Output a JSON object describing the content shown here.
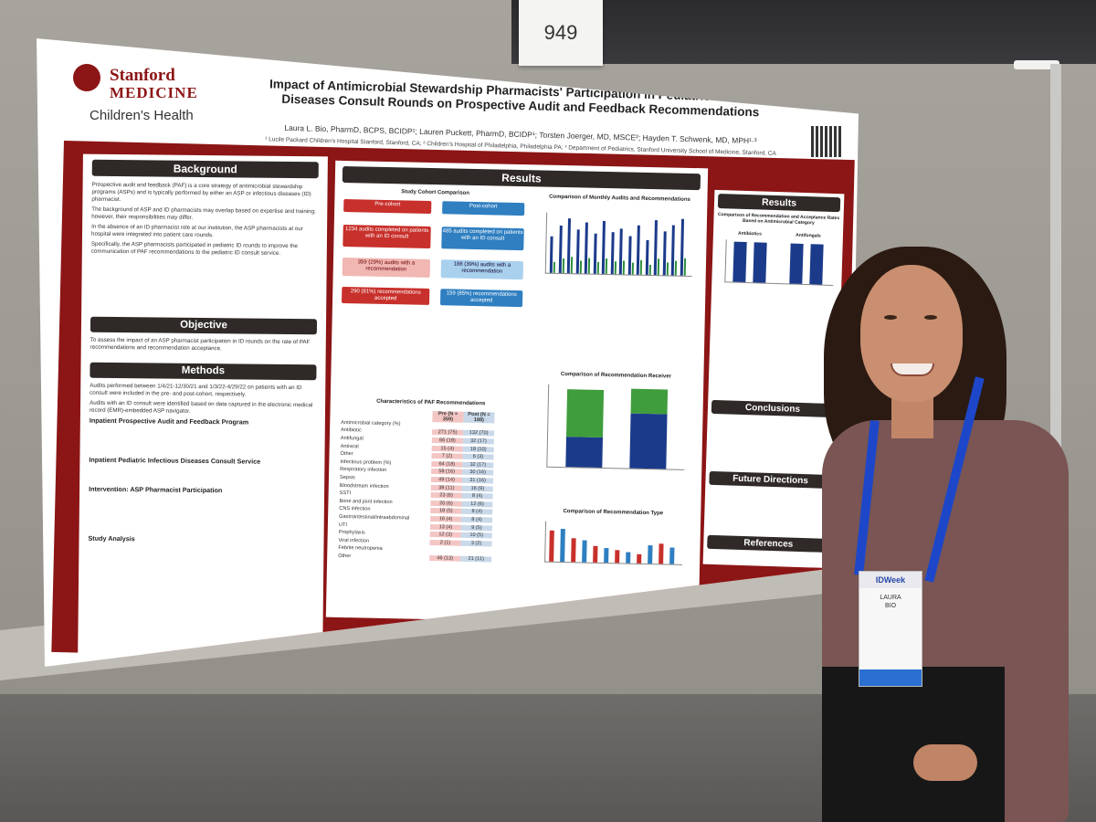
{
  "booth": {
    "number": "949"
  },
  "poster": {
    "logo": {
      "line1": "Stanford",
      "line2": "MEDICINE",
      "line3": "Children's Health"
    },
    "title_line1": "Impact of Antimicrobial Stewardship Pharmacists' Participation in Pediatric Infectious",
    "title_line2": "Diseases Consult Rounds on Prospective Audit and Feedback Recommendations",
    "authors": "Laura L. Bio, PharmD, BCPS, BCIDP¹; Lauren Puckett, PharmD, BCIDP¹; Torsten Joerger, MD, MSCE²; Hayden T. Schwenk, MD, MPH¹·³",
    "affiliations": "¹ Lucile Packard Children's Hospital Stanford, Stanford, CA; ² Children's Hospital of Philadelphia, Philadelphia PA; ³ Department of Pediatrics, Stanford University School of Medicine, Stanford, CA",
    "sections": {
      "background": "Background",
      "objective": "Objective",
      "methods": "Methods",
      "results": "Results",
      "conclusions": "Conclusions",
      "future": "Future Directions",
      "references": "References"
    },
    "background_points": [
      "Prospective audit and feedback (PAF) is a core strategy of antimicrobial stewardship programs (ASPs) and is typically performed by either an ASP or infectious diseases (ID) pharmacist.",
      "The background of ASP and ID pharmacists may overlap based on expertise and training; however, their responsibilities may differ.",
      "In the absence of an ID pharmacist role at our institution, the ASP pharmacists at our hospital were integrated into patient care rounds.",
      "Specifically, the ASP pharmacists participated in pediatric ID rounds to improve the communication of PAF recommendations to the pediatric ID consult service."
    ],
    "objective_text": "To assess the impact of an ASP pharmacist participation in ID rounds on the rate of PAF recommendations and recommendation acceptance.",
    "methods_points": [
      "Audits performed between 1/4/21-12/30/21 and 1/3/22-4/29/22 on patients with an ID consult were included in the pre- and post-cohort, respectively.",
      "Audits with an ID consult were identified based on data captured in the electronic medical record (EMR)-embedded ASP navigator."
    ],
    "methods_sub1": "Inpatient Prospective Audit and Feedback Program",
    "methods_sub2": "Inpatient Pediatric Infectious Diseases Consult Service",
    "methods_sub3": "Intervention: ASP Pharmacist Participation",
    "methods_sub4": "Study Analysis",
    "study_cohort_title": "Study Cohort Comparison",
    "pre": {
      "label": "Pre-cohort",
      "audits": "1234 audits completed on patients with an ID consult",
      "recs": "359 (29%) audits with a recommendation",
      "accepted": "290 (81%) recommendations accepted"
    },
    "post": {
      "label": "Post-cohort",
      "audits": "485 audits completed on patients with an ID consult",
      "recs": "188 (39%) audits with a recommendation",
      "accepted": "159 (85%) recommendations accepted"
    },
    "monthly_title": "Comparison of Monthly Audits and Recommendations",
    "receiver_title": "Comparison of Recommendation Receiver",
    "type_title": "Comparison of Recommendation Type",
    "paf_table_title": "Characteristics of PAF Recommendations",
    "paf_table_header": [
      "",
      "Pre (N = 359)",
      "Post (N = 188)"
    ],
    "paf_table_rows": [
      [
        "Antimicrobial category (%)",
        "",
        ""
      ],
      [
        "Antibiotic",
        "271 (75)",
        "132 (70)"
      ],
      [
        "Antifungal",
        "66 (18)",
        "32 (17)"
      ],
      [
        "Antiviral",
        "15 (4)",
        "18 (10)"
      ],
      [
        "Other",
        "7 (2)",
        "6 (3)"
      ],
      [
        "Infectious problem (%)",
        "64 (18)",
        "32 (17)"
      ],
      [
        "Respiratory infection",
        "58 (16)",
        "30 (16)"
      ],
      [
        "Sepsis",
        "49 (14)",
        "31 (16)"
      ],
      [
        "Bloodstream infection",
        "38 (11)",
        "16 (9)"
      ],
      [
        "SSTI",
        "23 (6)",
        "8 (4)"
      ],
      [
        "Bone and joint infection",
        "20 (6)",
        "12 (6)"
      ],
      [
        "CNS infection",
        "18 (5)",
        "8 (4)"
      ],
      [
        "Gastrointestinal/intraabdominal",
        "16 (4)",
        "8 (4)"
      ],
      [
        "UTI",
        "13 (4)",
        "9 (5)"
      ],
      [
        "Prophylaxis",
        "12 (3)",
        "10 (5)"
      ],
      [
        "Viral infection",
        "2 (1)",
        "3 (2)"
      ],
      [
        "Febrile neutropenia",
        "",
        ""
      ],
      [
        "Other",
        "46 (13)",
        "21 (11)"
      ]
    ],
    "right_results_title": "Comparison of Recommendation and Acceptance Rates Based on Antimicrobial Category",
    "antibiotics_label": "Antibiotics",
    "antifungals_label": "Antifungals"
  },
  "badge": {
    "brand": "IDWeek",
    "first": "LAURA",
    "last": "BIO"
  },
  "colors": {
    "stanford_red": "#8c1515",
    "pre_red": "#c8302b",
    "post_blue": "#2f7fc1",
    "lanyard": "#1d47c8"
  }
}
